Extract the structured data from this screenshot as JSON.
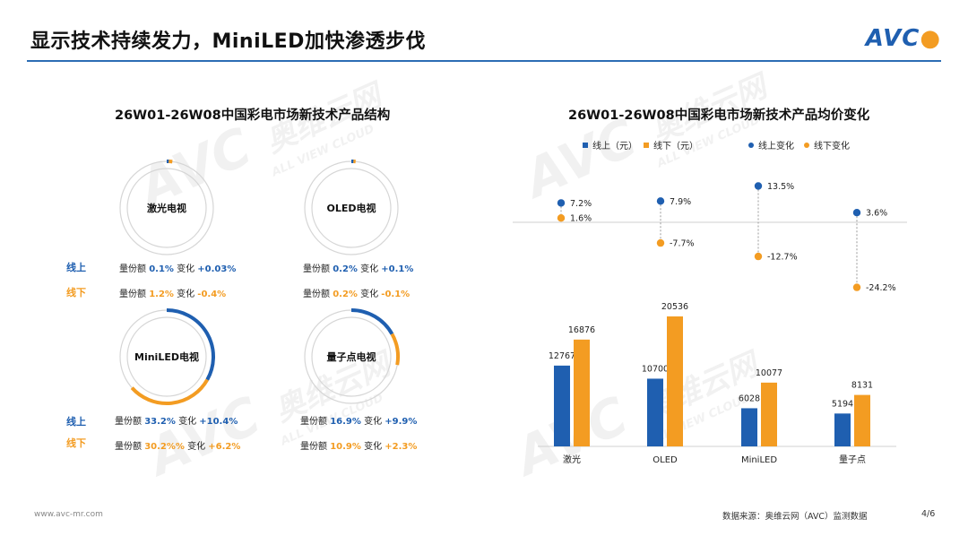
{
  "header": {
    "title": "显示技术持续发力，MiniLED加快渗透步伐",
    "logo": "AVC"
  },
  "watermark": {
    "brand": "AVC",
    "cn": "奥维云网",
    "en": "ALL VIEW CLOUD"
  },
  "left_panel": {
    "title": "26W01-26W08中国彩电市场新技术产品结构",
    "online_label": "线上",
    "offline_label": "线下",
    "share_label": "量份额",
    "change_label": "变化",
    "rings": [
      {
        "name": "激光电视",
        "online_share": "0.1%",
        "online_change": "+0.03%",
        "offline_share": "1.2%",
        "offline_change": "-0.4%"
      },
      {
        "name": "OLED电视",
        "online_share": "0.2%",
        "online_change": "+0.1%",
        "offline_share": "0.2%",
        "offline_change": "-0.1%"
      },
      {
        "name": "MiniLED电视",
        "online_share": "33.2%",
        "online_change": "+10.4%",
        "offline_share": "30.2%%",
        "offline_change": "+6.2%"
      },
      {
        "name": "量子点电视",
        "online_share": "16.9%",
        "online_change": "+9.9%",
        "offline_share": "10.9%",
        "offline_change": "+2.3%"
      }
    ]
  },
  "right_panel": {
    "title": "26W01-26W08中国彩电市场新技术产品均价变化",
    "legend": {
      "bar_online": "线上（元）",
      "bar_offline": "线下（元）",
      "dot_online": "线上变化",
      "dot_offline": "线下变化"
    }
  },
  "chart_data": [
    {
      "type": "pie",
      "title": "26W01-26W08中国彩电市场新技术产品结构",
      "categories": [
        "激光电视",
        "OLED电视",
        "MiniLED电视",
        "量子点电视"
      ],
      "series": [
        {
          "name": "线上",
          "values": [
            0.1,
            0.2,
            33.2,
            16.9
          ],
          "color": "#1f5fb0"
        },
        {
          "name": "线下",
          "values": [
            1.2,
            0.2,
            30.2,
            10.9
          ],
          "color": "#f39c22"
        }
      ]
    },
    {
      "type": "bar",
      "title": "26W01-26W08中国彩电市场新技术产品均价变化",
      "categories": [
        "激光",
        "OLED",
        "MiniLED",
        "量子点"
      ],
      "series": [
        {
          "name": "线上（元）",
          "values": [
            12767,
            10700,
            6028,
            5194
          ],
          "color": "#1f5fb0"
        },
        {
          "name": "线下（元）",
          "values": [
            16876,
            20536,
            10077,
            8131
          ],
          "color": "#f39c22"
        }
      ],
      "labels": [
        "12767",
        "10700",
        "6028",
        "5194",
        "16876",
        "20536",
        "10077",
        "8131"
      ]
    },
    {
      "type": "scatter",
      "categories": [
        "激光",
        "OLED",
        "MiniLED",
        "量子点"
      ],
      "series": [
        {
          "name": "线上变化",
          "values": [
            7.2,
            7.9,
            13.5,
            3.6
          ],
          "color": "#1f5fb0"
        },
        {
          "name": "线下变化",
          "values": [
            1.6,
            -7.7,
            -12.7,
            -24.2
          ],
          "color": "#f39c22"
        }
      ],
      "labels": [
        "7.2%",
        "7.9%",
        "13.5%",
        "3.6%",
        "1.6%",
        "-7.7%",
        "-12.7%",
        "-24.2%"
      ]
    }
  ],
  "footer": {
    "website": "www.avc-mr.com",
    "source": "数据来源：奥维云网（AVC）监测数据",
    "page": "4/6"
  }
}
